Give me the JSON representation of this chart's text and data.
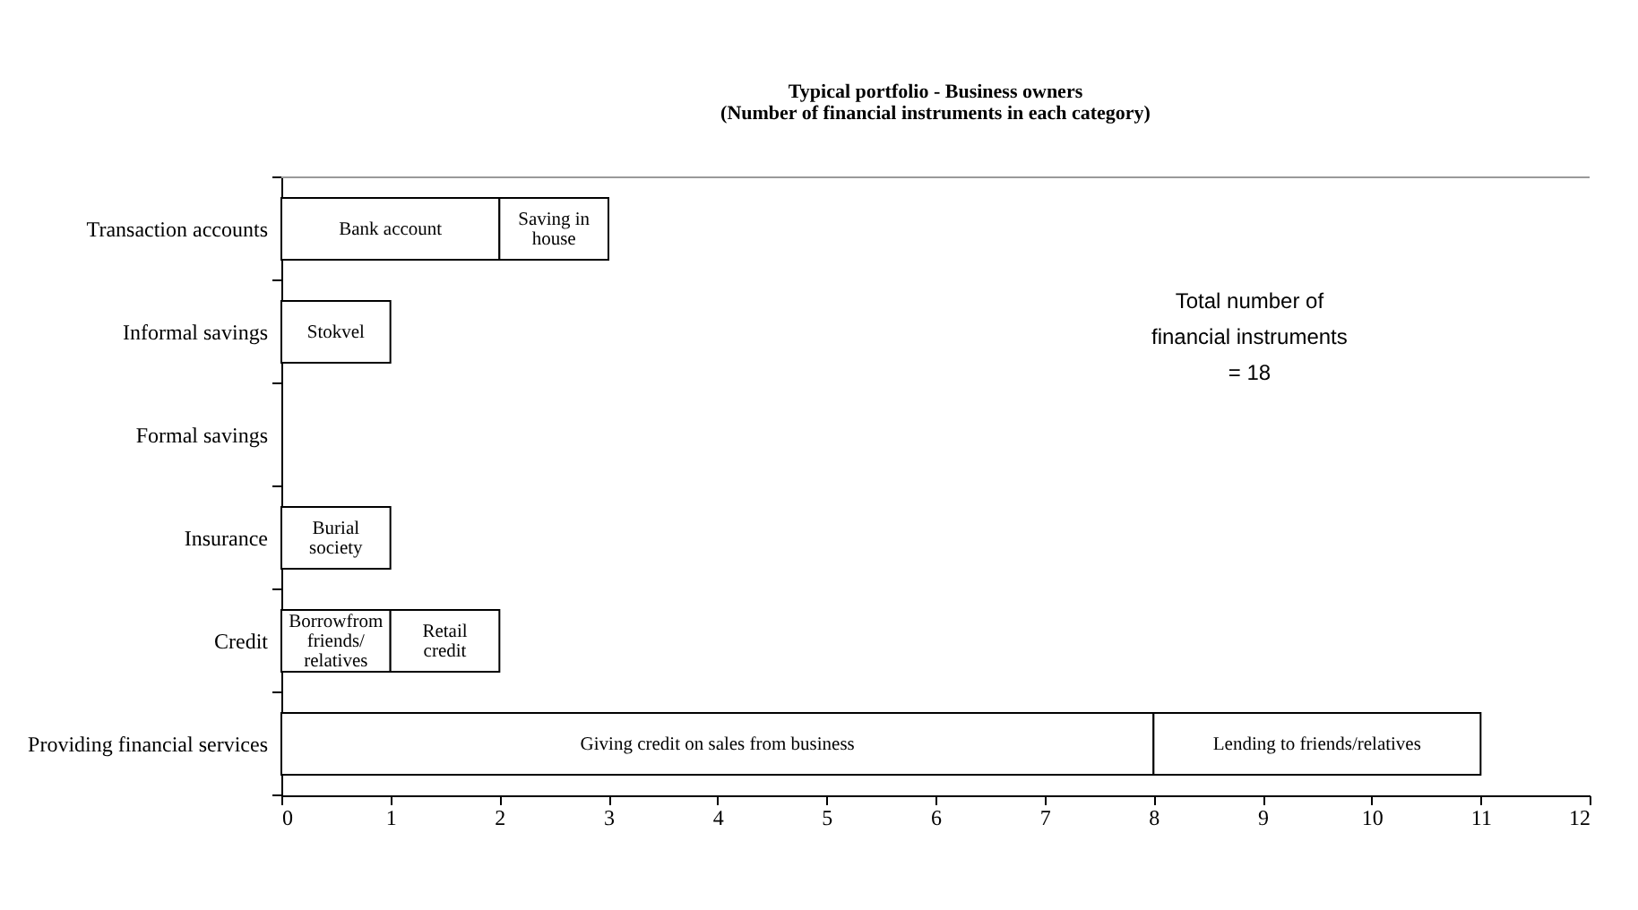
{
  "chart_data": {
    "type": "bar",
    "orientation": "horizontal",
    "stacked": true,
    "title": "Typical portfolio - Business owners",
    "subtitle": "(Number of financial instruments in each category)",
    "categories": [
      "Transaction accounts",
      "Informal savings",
      "Formal savings",
      "Insurance",
      "Credit",
      "Providing financial services"
    ],
    "series": [
      {
        "color": "#ffffff",
        "values": [
          2,
          1,
          null,
          1,
          1,
          8
        ],
        "value_labels": [
          "Bank account",
          "Stokvel",
          null,
          "Burial society",
          "Borrowfrom friends/relatives",
          "Giving credit on sales from business"
        ]
      },
      {
        "color": "#ffffff",
        "values": [
          1,
          null,
          null,
          null,
          1,
          3
        ],
        "value_labels": [
          "Saving in house",
          null,
          null,
          null,
          "Retail credit",
          "Lending to friends/relatives"
        ]
      }
    ],
    "xlim": [
      0,
      12
    ],
    "xticks": [
      0,
      1,
      2,
      3,
      4,
      5,
      6,
      7,
      8,
      9,
      10,
      11,
      12
    ],
    "grid": false,
    "annotations": [
      "Total number of financial instruments = 18"
    ]
  }
}
